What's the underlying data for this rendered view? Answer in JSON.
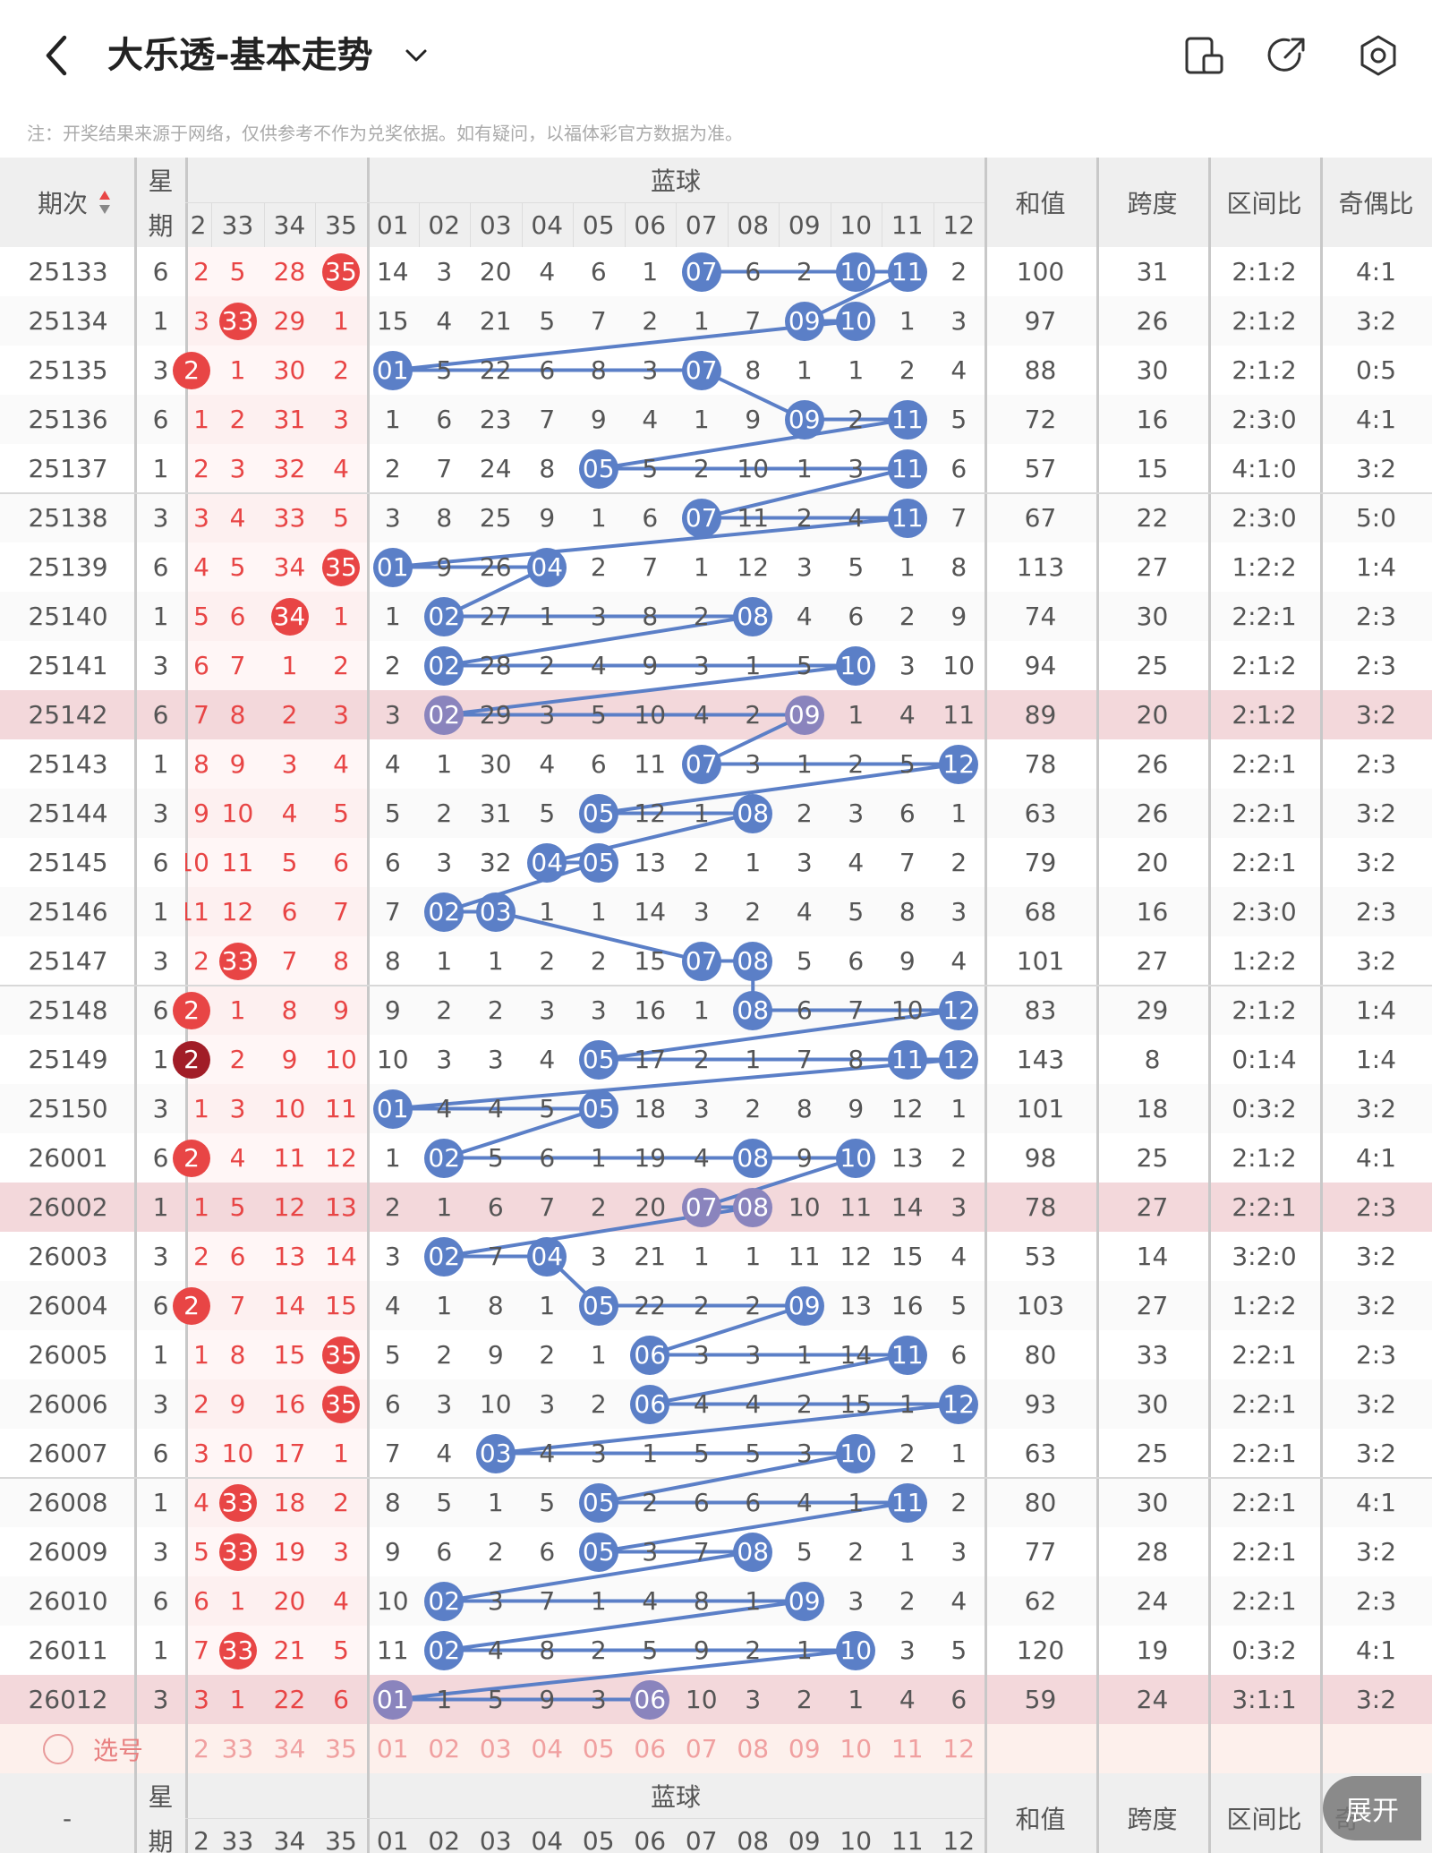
{
  "header": {
    "title": "大乐透-基本走势",
    "back_icon": "chevron-left-icon",
    "dropdown_icon": "chevron-down-icon",
    "actions": [
      {
        "name": "split-screen-button",
        "icon": "split-screen-icon"
      },
      {
        "name": "share-button",
        "icon": "share-icon"
      },
      {
        "name": "settings-button",
        "icon": "gear-icon"
      }
    ]
  },
  "note": "注：开奖结果来源于网络，仅供参考不作为兑奖依据。如有疑问，以福体彩官方数据为准。",
  "table": {
    "header": {
      "period": "期次",
      "weekday": "星期",
      "blue_group": "蓝球",
      "front_cols": [
        "2",
        "33",
        "34",
        "35"
      ],
      "blue_cols": [
        "01",
        "02",
        "03",
        "04",
        "05",
        "06",
        "07",
        "08",
        "09",
        "10",
        "11",
        "12"
      ],
      "stats": [
        "和值",
        "跨度",
        "区间比",
        "奇偶比"
      ]
    },
    "rows": [
      {
        "period": "25133",
        "week": "6",
        "front": [
          "2",
          "5",
          "28",
          "35"
        ],
        "blue": [
          "14",
          "3",
          "20",
          "4",
          "6",
          "1",
          "07",
          "6",
          "2",
          "10",
          "11",
          "2"
        ],
        "stats": [
          "100",
          "31",
          "2:1:2",
          "4:1"
        ]
      },
      {
        "period": "25134",
        "week": "1",
        "front": [
          "3",
          "33",
          "29",
          "1"
        ],
        "blue": [
          "15",
          "4",
          "21",
          "5",
          "7",
          "2",
          "1",
          "7",
          "09",
          "10",
          "1",
          "3"
        ],
        "stats": [
          "97",
          "26",
          "2:1:2",
          "3:2"
        ]
      },
      {
        "period": "25135",
        "week": "3",
        "front": [
          "2",
          "1",
          "30",
          "2"
        ],
        "blue": [
          "01",
          "5",
          "22",
          "6",
          "8",
          "3",
          "07",
          "8",
          "1",
          "1",
          "2",
          "4"
        ],
        "stats": [
          "88",
          "30",
          "2:1:2",
          "0:5"
        ]
      },
      {
        "period": "25136",
        "week": "6",
        "front": [
          "1",
          "2",
          "31",
          "3"
        ],
        "blue": [
          "1",
          "6",
          "23",
          "7",
          "9",
          "4",
          "1",
          "9",
          "09",
          "2",
          "11",
          "5"
        ],
        "stats": [
          "72",
          "16",
          "2:3:0",
          "4:1"
        ]
      },
      {
        "period": "25137",
        "week": "1",
        "front": [
          "2",
          "3",
          "32",
          "4"
        ],
        "blue": [
          "2",
          "7",
          "24",
          "8",
          "05",
          "5",
          "2",
          "10",
          "1",
          "3",
          "11",
          "6"
        ],
        "stats": [
          "57",
          "15",
          "4:1:0",
          "3:2"
        ]
      },
      {
        "period": "25138",
        "week": "3",
        "front": [
          "3",
          "4",
          "33",
          "5"
        ],
        "blue": [
          "3",
          "8",
          "25",
          "9",
          "1",
          "6",
          "07",
          "11",
          "2",
          "4",
          "11",
          "7"
        ],
        "stats": [
          "67",
          "22",
          "2:3:0",
          "5:0"
        ]
      },
      {
        "period": "25139",
        "week": "6",
        "front": [
          "4",
          "5",
          "34",
          "35"
        ],
        "blue": [
          "01",
          "9",
          "26",
          "04",
          "2",
          "7",
          "1",
          "12",
          "3",
          "5",
          "1",
          "8"
        ],
        "stats": [
          "113",
          "27",
          "1:2:2",
          "1:4"
        ]
      },
      {
        "period": "25140",
        "week": "1",
        "front": [
          "5",
          "6",
          "34",
          "1"
        ],
        "blue": [
          "1",
          "02",
          "27",
          "1",
          "3",
          "8",
          "2",
          "08",
          "4",
          "6",
          "2",
          "9"
        ],
        "stats": [
          "74",
          "30",
          "2:2:1",
          "2:3"
        ]
      },
      {
        "period": "25141",
        "week": "3",
        "front": [
          "6",
          "7",
          "1",
          "2"
        ],
        "blue": [
          "2",
          "02",
          "28",
          "2",
          "4",
          "9",
          "3",
          "1",
          "5",
          "10",
          "3",
          "10"
        ],
        "stats": [
          "94",
          "25",
          "2:1:2",
          "2:3"
        ]
      },
      {
        "period": "25142",
        "week": "6",
        "front": [
          "7",
          "8",
          "2",
          "3"
        ],
        "blue": [
          "3",
          "02",
          "29",
          "3",
          "5",
          "10",
          "4",
          "2",
          "09",
          "1",
          "4",
          "11"
        ],
        "stats": [
          "89",
          "20",
          "2:1:2",
          "3:2"
        ]
      },
      {
        "period": "25143",
        "week": "1",
        "front": [
          "8",
          "9",
          "3",
          "4"
        ],
        "blue": [
          "4",
          "1",
          "30",
          "4",
          "6",
          "11",
          "07",
          "3",
          "1",
          "2",
          "5",
          "12"
        ],
        "stats": [
          "78",
          "26",
          "2:2:1",
          "2:3"
        ]
      },
      {
        "period": "25144",
        "week": "3",
        "front": [
          "9",
          "10",
          "4",
          "5"
        ],
        "blue": [
          "5",
          "2",
          "31",
          "5",
          "05",
          "12",
          "1",
          "08",
          "2",
          "3",
          "6",
          "1"
        ],
        "stats": [
          "63",
          "26",
          "2:2:1",
          "3:2"
        ]
      },
      {
        "period": "25145",
        "week": "6",
        "front": [
          "10",
          "11",
          "5",
          "6"
        ],
        "blue": [
          "6",
          "3",
          "32",
          "04",
          "05",
          "13",
          "2",
          "1",
          "3",
          "4",
          "7",
          "2"
        ],
        "stats": [
          "79",
          "20",
          "2:2:1",
          "3:2"
        ]
      },
      {
        "period": "25146",
        "week": "1",
        "front": [
          "11",
          "12",
          "6",
          "7"
        ],
        "blue": [
          "7",
          "02",
          "03",
          "1",
          "1",
          "14",
          "3",
          "2",
          "4",
          "5",
          "8",
          "3"
        ],
        "stats": [
          "68",
          "16",
          "2:3:0",
          "2:3"
        ]
      },
      {
        "period": "25147",
        "week": "3",
        "front": [
          "2",
          "33",
          "7",
          "8"
        ],
        "blue": [
          "8",
          "1",
          "1",
          "2",
          "2",
          "15",
          "07",
          "08",
          "5",
          "6",
          "9",
          "4"
        ],
        "stats": [
          "101",
          "27",
          "1:2:2",
          "3:2"
        ]
      },
      {
        "period": "25148",
        "week": "6",
        "front": [
          "2",
          "1",
          "8",
          "9"
        ],
        "blue": [
          "9",
          "2",
          "2",
          "3",
          "3",
          "16",
          "1",
          "08",
          "6",
          "7",
          "10",
          "12"
        ],
        "stats": [
          "83",
          "29",
          "2:1:2",
          "1:4"
        ]
      },
      {
        "period": "25149",
        "week": "1",
        "front": [
          "2",
          "2",
          "9",
          "10"
        ],
        "blue": [
          "10",
          "3",
          "3",
          "4",
          "05",
          "17",
          "2",
          "1",
          "7",
          "8",
          "11",
          "12"
        ],
        "stats": [
          "143",
          "8",
          "0:1:4",
          "1:4"
        ]
      },
      {
        "period": "25150",
        "week": "3",
        "front": [
          "1",
          "3",
          "10",
          "11"
        ],
        "blue": [
          "01",
          "4",
          "4",
          "5",
          "05",
          "18",
          "3",
          "2",
          "8",
          "9",
          "12",
          "1"
        ],
        "stats": [
          "101",
          "18",
          "0:3:2",
          "3:2"
        ]
      },
      {
        "period": "26001",
        "week": "6",
        "front": [
          "2",
          "4",
          "11",
          "12"
        ],
        "blue": [
          "1",
          "02",
          "5",
          "6",
          "1",
          "19",
          "4",
          "08",
          "9",
          "10",
          "13",
          "2"
        ],
        "stats": [
          "98",
          "25",
          "2:1:2",
          "4:1"
        ]
      },
      {
        "period": "26002",
        "week": "1",
        "front": [
          "1",
          "5",
          "12",
          "13"
        ],
        "blue": [
          "2",
          "1",
          "6",
          "7",
          "2",
          "20",
          "07",
          "08",
          "10",
          "11",
          "14",
          "3"
        ],
        "stats": [
          "78",
          "27",
          "2:2:1",
          "2:3"
        ]
      },
      {
        "period": "26003",
        "week": "3",
        "front": [
          "2",
          "6",
          "13",
          "14"
        ],
        "blue": [
          "3",
          "02",
          "7",
          "04",
          "3",
          "21",
          "1",
          "1",
          "11",
          "12",
          "15",
          "4"
        ],
        "stats": [
          "53",
          "14",
          "3:2:0",
          "3:2"
        ]
      },
      {
        "period": "26004",
        "week": "6",
        "front": [
          "2",
          "7",
          "14",
          "15"
        ],
        "blue": [
          "4",
          "1",
          "8",
          "1",
          "05",
          "22",
          "2",
          "2",
          "09",
          "13",
          "16",
          "5"
        ],
        "stats": [
          "103",
          "27",
          "1:2:2",
          "3:2"
        ]
      },
      {
        "period": "26005",
        "week": "1",
        "front": [
          "1",
          "8",
          "15",
          "35"
        ],
        "blue": [
          "5",
          "2",
          "9",
          "2",
          "1",
          "06",
          "3",
          "3",
          "1",
          "14",
          "11",
          "6"
        ],
        "stats": [
          "80",
          "33",
          "2:2:1",
          "2:3"
        ]
      },
      {
        "period": "26006",
        "week": "3",
        "front": [
          "2",
          "9",
          "16",
          "35"
        ],
        "blue": [
          "6",
          "3",
          "10",
          "3",
          "2",
          "06",
          "4",
          "4",
          "2",
          "15",
          "1",
          "12"
        ],
        "stats": [
          "93",
          "30",
          "2:2:1",
          "3:2"
        ]
      },
      {
        "period": "26007",
        "week": "6",
        "front": [
          "3",
          "10",
          "17",
          "1"
        ],
        "blue": [
          "7",
          "4",
          "03",
          "4",
          "3",
          "1",
          "5",
          "5",
          "3",
          "10",
          "2",
          "1"
        ],
        "stats": [
          "63",
          "25",
          "2:2:1",
          "3:2"
        ]
      },
      {
        "period": "26008",
        "week": "1",
        "front": [
          "4",
          "33",
          "18",
          "2"
        ],
        "blue": [
          "8",
          "5",
          "1",
          "5",
          "05",
          "2",
          "6",
          "6",
          "4",
          "1",
          "11",
          "2"
        ],
        "stats": [
          "80",
          "30",
          "2:2:1",
          "4:1"
        ]
      },
      {
        "period": "26009",
        "week": "3",
        "front": [
          "5",
          "33",
          "19",
          "3"
        ],
        "blue": [
          "9",
          "6",
          "2",
          "6",
          "05",
          "3",
          "7",
          "08",
          "5",
          "2",
          "1",
          "3"
        ],
        "stats": [
          "77",
          "28",
          "2:2:1",
          "3:2"
        ]
      },
      {
        "period": "26010",
        "week": "6",
        "front": [
          "6",
          "1",
          "20",
          "4"
        ],
        "blue": [
          "10",
          "02",
          "3",
          "7",
          "1",
          "4",
          "8",
          "1",
          "09",
          "3",
          "2",
          "4"
        ],
        "stats": [
          "62",
          "24",
          "2:2:1",
          "2:3"
        ]
      },
      {
        "period": "26011",
        "week": "1",
        "front": [
          "7",
          "33",
          "21",
          "5"
        ],
        "blue": [
          "11",
          "02",
          "4",
          "8",
          "2",
          "5",
          "9",
          "2",
          "1",
          "10",
          "3",
          "5"
        ],
        "stats": [
          "120",
          "19",
          "0:3:2",
          "4:1"
        ]
      },
      {
        "period": "26012",
        "week": "3",
        "front": [
          "3",
          "1",
          "22",
          "6"
        ],
        "blue": [
          "01",
          "1",
          "5",
          "9",
          "3",
          "06",
          "10",
          "3",
          "2",
          "1",
          "4",
          "6"
        ],
        "stats": [
          "59",
          "24",
          "3:1:1",
          "3:2"
        ]
      }
    ],
    "select_row": {
      "label": "选号",
      "front": [
        "2",
        "33",
        "34",
        "35"
      ],
      "blue": [
        "01",
        "02",
        "03",
        "04",
        "05",
        "06",
        "07",
        "08",
        "09",
        "10",
        "11",
        "12"
      ]
    },
    "footer": {
      "dash": "-",
      "weekday_top": "星",
      "weekday_bottom": "期",
      "blue_group": "蓝球",
      "front_cols": [
        "2",
        "33",
        "34",
        "35"
      ],
      "blue_cols": [
        "01",
        "02",
        "03",
        "04",
        "05",
        "06",
        "07",
        "08",
        "09",
        "10",
        "11",
        "12"
      ],
      "stats": [
        "和值",
        "跨度",
        "区间比",
        "奇"
      ]
    },
    "expand_label": "展开"
  },
  "colors": {
    "blue_ball": "#5b7fc7",
    "highlight_ball": "#8a84bd",
    "red_ball": "#e84545",
    "dark_red_ball": "#a11d27",
    "highlight_row": "#f3d8db",
    "header_bg": "#efefef",
    "trend_line": "#5b7fc7"
  }
}
